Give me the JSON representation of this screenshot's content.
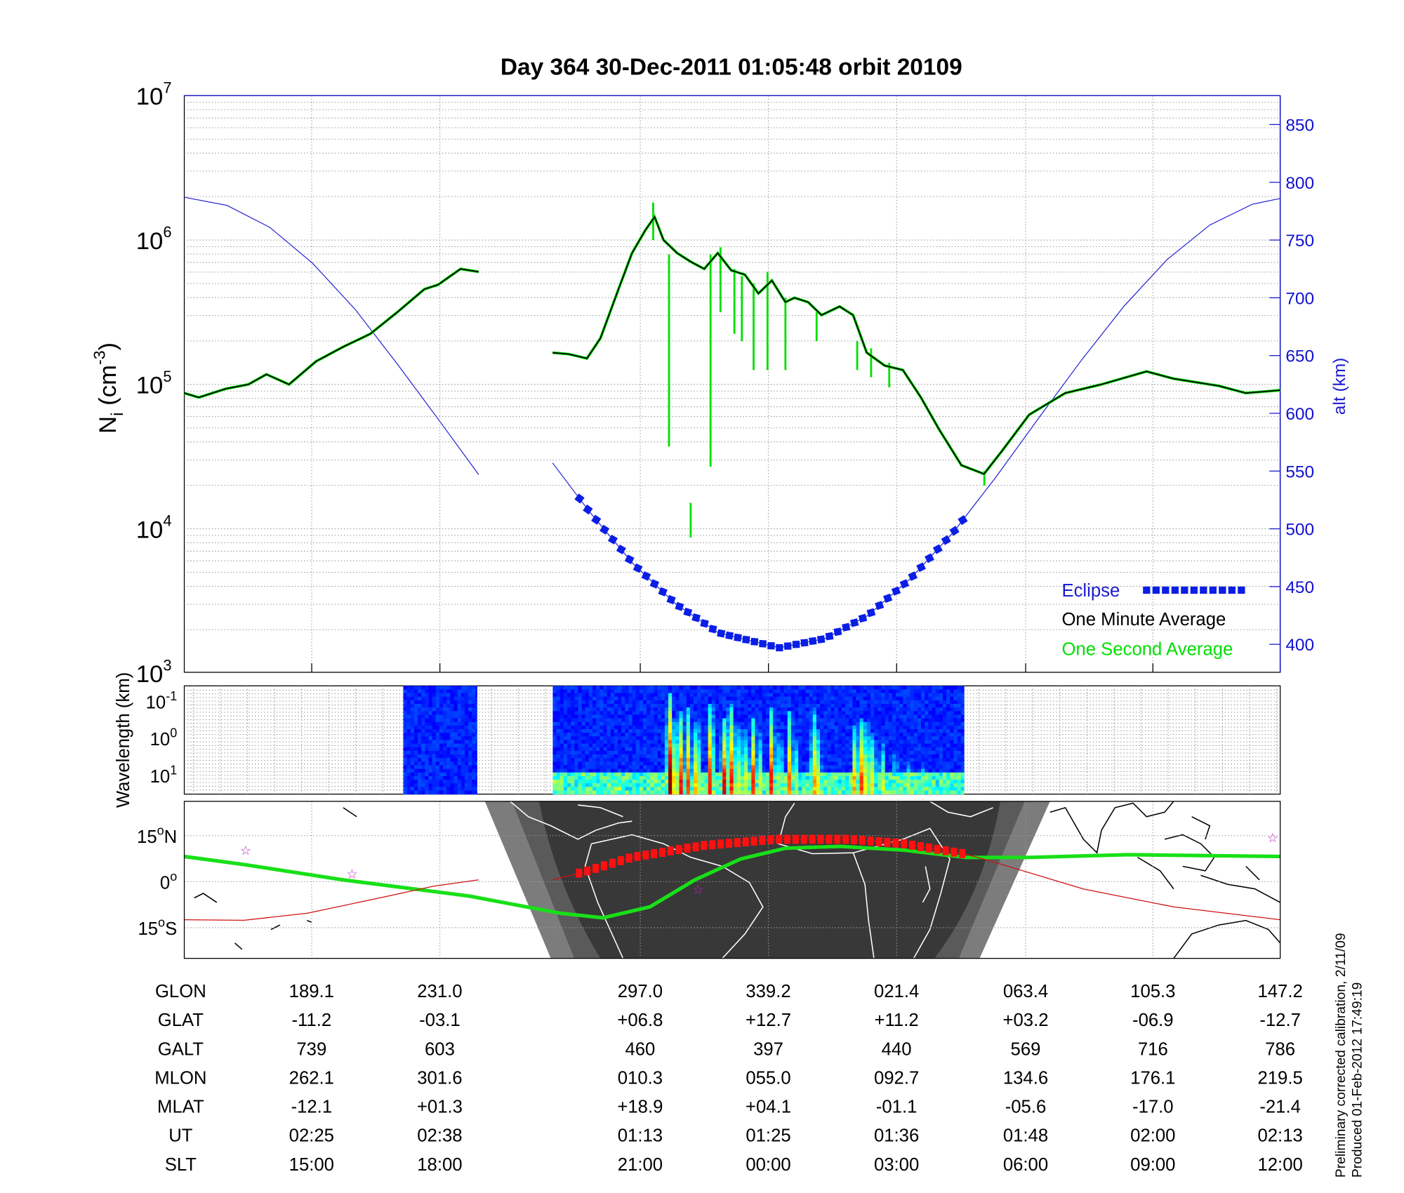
{
  "title": "Day 364  30-Dec-2011 01:05:48   orbit 20109",
  "main_panel": {
    "ylabel_main": "N",
    "ylabel_sub": "i",
    "ylabel_unit": " (cm",
    "ylabel_exp": "-3",
    "ylabel_close": ")",
    "y_ticks": [
      {
        "base": "10",
        "exp": "7",
        "log": 7
      },
      {
        "base": "10",
        "exp": "6",
        "log": 6
      },
      {
        "base": "10",
        "exp": "5",
        "log": 5
      },
      {
        "base": "10",
        "exp": "4",
        "log": 4
      },
      {
        "base": "10",
        "exp": "3",
        "log": 3
      }
    ],
    "right_label": "alt (km)",
    "right_ticks": [
      "850",
      "800",
      "750",
      "700",
      "650",
      "600",
      "550",
      "500",
      "450",
      "400"
    ],
    "legend": {
      "eclipse": "Eclipse",
      "minute": "One Minute Average",
      "second": "One Second Average"
    }
  },
  "spectrogram": {
    "ylabel": "Wavelength (km)",
    "y_ticks": [
      {
        "base": "10",
        "exp": "-1",
        "log": -1
      },
      {
        "base": "10",
        "exp": "0",
        "log": 0
      },
      {
        "base": "10",
        "exp": "1",
        "log": 1
      }
    ],
    "blocks_min": [
      [
        20.5,
        27.4
      ],
      [
        34.5,
        73.0
      ]
    ],
    "streaks": [
      {
        "t": 45.3,
        "power": 0.95,
        "top_log": -1.3
      },
      {
        "t": 45.8,
        "power": 0.8,
        "top_log": -0.6
      },
      {
        "t": 46.3,
        "power": 0.85,
        "top_log": -0.8
      },
      {
        "t": 47.0,
        "power": 0.75,
        "top_log": -0.9
      },
      {
        "t": 47.8,
        "power": 0.8,
        "top_log": -0.5
      },
      {
        "t": 49.1,
        "power": 0.9,
        "top_log": -1.0
      },
      {
        "t": 50.4,
        "power": 0.85,
        "top_log": -0.6
      },
      {
        "t": 51.0,
        "power": 0.9,
        "top_log": -1.0
      },
      {
        "t": 51.6,
        "power": 0.75,
        "top_log": -0.4
      },
      {
        "t": 52.3,
        "power": 0.7,
        "top_log": -0.3
      },
      {
        "t": 53.1,
        "power": 0.8,
        "top_log": -0.6
      },
      {
        "t": 53.7,
        "power": 0.6,
        "top_log": -0.2
      },
      {
        "t": 54.8,
        "power": 0.8,
        "top_log": -0.9
      },
      {
        "t": 55.6,
        "power": 0.6,
        "top_log": -0.2
      },
      {
        "t": 56.5,
        "power": 0.75,
        "top_log": -0.8
      },
      {
        "t": 57.1,
        "power": 0.55,
        "top_log": 0.0
      },
      {
        "t": 58.8,
        "power": 0.7,
        "top_log": -0.9
      },
      {
        "t": 59.2,
        "power": 0.6,
        "top_log": -0.3
      },
      {
        "t": 62.6,
        "power": 0.7,
        "top_log": -0.4
      },
      {
        "t": 63.2,
        "power": 0.8,
        "top_log": -0.6
      },
      {
        "t": 63.7,
        "power": 0.75,
        "top_log": -0.5
      },
      {
        "t": 64.3,
        "power": 0.65,
        "top_log": -0.2
      },
      {
        "t": 65.2,
        "power": 0.6,
        "top_log": 0.1
      },
      {
        "t": 66.4,
        "power": 0.5,
        "top_log": 0.3
      },
      {
        "t": 67.7,
        "power": 0.45,
        "top_log": 0.5
      },
      {
        "t": 69.0,
        "power": 0.4,
        "top_log": 0.6
      }
    ]
  },
  "map_panel": {
    "lat_labels": [
      {
        "text": "15",
        "deg": "o",
        "hemi": "N",
        "lat": 15
      },
      {
        "text": "0",
        "deg": "o",
        "hemi": "",
        "lat": 0
      },
      {
        "text": "15",
        "deg": "o",
        "hemi": "S",
        "lat": -15
      }
    ]
  },
  "table": {
    "rows": [
      {
        "label": "GLON",
        "values": [
          "189.1",
          "231.0",
          "297.0",
          "339.2",
          "021.4",
          "063.4",
          "105.3",
          "147.2"
        ]
      },
      {
        "label": "GLAT",
        "values": [
          "-11.2",
          "-03.1",
          "+06.8",
          "+12.7",
          "+11.2",
          "+03.2",
          "-06.9",
          "-12.7"
        ]
      },
      {
        "label": "GALT",
        "values": [
          "739",
          "603",
          "460",
          "397",
          "440",
          "569",
          "716",
          "786"
        ]
      },
      {
        "label": "MLON",
        "values": [
          "262.1",
          "301.6",
          "010.3",
          "055.0",
          "092.7",
          "134.6",
          "176.1",
          "219.5"
        ]
      },
      {
        "label": "MLAT",
        "values": [
          "-12.1",
          "+01.3",
          "+18.9",
          "+04.1",
          "-01.1",
          "-05.6",
          "-17.0",
          "-21.4"
        ]
      },
      {
        "label": "UT",
        "values": [
          "02:25",
          "02:38",
          "01:13",
          "01:25",
          "01:36",
          "01:48",
          "02:00",
          "02:13"
        ]
      },
      {
        "label": "SLT",
        "values": [
          "15:00",
          "18:00",
          "21:00",
          "00:00",
          "03:00",
          "06:00",
          "09:00",
          "12:00"
        ]
      }
    ]
  },
  "footer": {
    "line1": "Preliminary corrected calibration, 2/11/09",
    "line2": "Produced 01-Feb-2012 17:49:19"
  },
  "colors": {
    "minute": "#000000",
    "second": "#00e000",
    "altitude": "#1a1ad0",
    "eclipse": "#0a1ee6",
    "track": "#d01010",
    "eclipse_track": "#ff1010",
    "dip_equator": "#18e018",
    "star": "#c020c0"
  },
  "chart_data": {
    "type": "line",
    "title": "Day 364  30-Dec-2011 01:05:48   orbit 20109",
    "xlim": [
      0,
      102.6
    ],
    "x_ticks": [
      11.93,
      23.93,
      42.69,
      54.69,
      66.69,
      78.77,
      90.68,
      102.6
    ],
    "ylim_log10": [
      3,
      7
    ],
    "alt_lim": [
      375,
      875
    ],
    "density_minute_log10": [
      [
        [
          0,
          4.94
        ],
        [
          1.35,
          4.91
        ],
        [
          3.89,
          4.97
        ],
        [
          6.0,
          5.0
        ],
        [
          7.69,
          5.07
        ],
        [
          9.8,
          5.0
        ],
        [
          12.34,
          5.16
        ],
        [
          14.87,
          5.26
        ],
        [
          17.41,
          5.35
        ],
        [
          19.94,
          5.5
        ],
        [
          22.48,
          5.66
        ],
        [
          23.75,
          5.69
        ],
        [
          25.86,
          5.8
        ],
        [
          27.55,
          5.78
        ]
      ],
      [
        [
          34.48,
          5.22
        ],
        [
          36.0,
          5.21
        ],
        [
          37.69,
          5.18
        ],
        [
          38.96,
          5.32
        ],
        [
          40.65,
          5.66
        ],
        [
          41.92,
          5.91
        ],
        [
          43.18,
          6.07
        ],
        [
          44.03,
          6.16
        ],
        [
          44.87,
          6.0
        ],
        [
          46.14,
          5.91
        ],
        [
          47.41,
          5.85
        ],
        [
          48.68,
          5.8
        ],
        [
          49.94,
          5.91
        ],
        [
          51.21,
          5.79
        ],
        [
          52.48,
          5.76
        ],
        [
          53.75,
          5.63
        ],
        [
          55.01,
          5.72
        ],
        [
          56.28,
          5.57
        ],
        [
          57.13,
          5.6
        ],
        [
          58.4,
          5.57
        ],
        [
          59.66,
          5.48
        ],
        [
          61.35,
          5.54
        ],
        [
          62.62,
          5.48
        ],
        [
          63.89,
          5.22
        ],
        [
          65.58,
          5.13
        ],
        [
          67.27,
          5.1
        ],
        [
          68.96,
          4.91
        ],
        [
          70.65,
          4.69
        ],
        [
          72.76,
          4.44
        ],
        [
          74.87,
          4.38
        ],
        [
          76.56,
          4.54
        ],
        [
          79.1,
          4.79
        ],
        [
          82.48,
          4.94
        ],
        [
          85.86,
          5.0
        ],
        [
          90.08,
          5.09
        ],
        [
          92.62,
          5.04
        ],
        [
          96.85,
          4.99
        ],
        [
          99.38,
          4.94
        ],
        [
          102.6,
          4.96
        ]
      ]
    ],
    "density_second_spikes_log10": [
      {
        "x": 43.9,
        "from": 6.0,
        "to": 6.26
      },
      {
        "x": 45.38,
        "from": 4.57,
        "to": 5.9
      },
      {
        "x": 47.41,
        "from": 3.94,
        "to": 4.18
      },
      {
        "x": 49.27,
        "from": 4.43,
        "to": 5.9
      },
      {
        "x": 50.2,
        "from": 5.5,
        "to": 5.95
      },
      {
        "x": 51.5,
        "from": 5.35,
        "to": 5.8
      },
      {
        "x": 52.2,
        "from": 5.3,
        "to": 5.75
      },
      {
        "x": 53.3,
        "from": 5.1,
        "to": 5.7
      },
      {
        "x": 54.6,
        "from": 5.1,
        "to": 5.78
      },
      {
        "x": 56.28,
        "from": 5.1,
        "to": 5.6
      },
      {
        "x": 59.2,
        "from": 5.3,
        "to": 5.5
      },
      {
        "x": 63.0,
        "from": 5.1,
        "to": 5.3
      },
      {
        "x": 64.3,
        "from": 5.05,
        "to": 5.25
      },
      {
        "x": 66.0,
        "from": 4.98,
        "to": 5.15
      },
      {
        "x": 74.9,
        "from": 4.3,
        "to": 4.4
      }
    ],
    "altitude_km": [
      [
        [
          0,
          787
        ],
        [
          4,
          780
        ],
        [
          8,
          761
        ],
        [
          12,
          730
        ],
        [
          16,
          690
        ],
        [
          20,
          642
        ],
        [
          24,
          592
        ],
        [
          27.55,
          547
        ]
      ],
      [
        [
          34.48,
          557
        ],
        [
          38,
          514
        ],
        [
          42,
          470
        ],
        [
          46,
          435
        ],
        [
          50,
          410
        ],
        [
          55.7,
          397
        ],
        [
          60,
          405
        ],
        [
          64,
          425
        ],
        [
          68,
          457
        ],
        [
          72,
          497
        ],
        [
          76,
          545
        ],
        [
          80,
          596
        ],
        [
          84,
          646
        ],
        [
          88,
          693
        ],
        [
          92,
          733
        ],
        [
          96,
          763
        ],
        [
          100,
          781
        ],
        [
          102.6,
          786
        ]
      ]
    ],
    "eclipse_interval": [
      37.0,
      73.0
    ],
    "map_lat_lim": [
      -25,
      26
    ],
    "dip_equator_lat": [
      [
        0,
        8.2
      ],
      [
        5.58,
        5.6
      ],
      [
        14.87,
        0.6
      ],
      [
        26.7,
        -4.7
      ],
      [
        35.2,
        -10.3
      ],
      [
        39.2,
        -11.8
      ],
      [
        43.6,
        -8.2
      ],
      [
        47.8,
        0.6
      ],
      [
        52.1,
        7.4
      ],
      [
        56.3,
        10.9
      ],
      [
        61.4,
        11.5
      ],
      [
        67.3,
        10.3
      ],
      [
        73.2,
        7.9
      ],
      [
        79.1,
        7.9
      ],
      [
        88.4,
        8.8
      ],
      [
        102.6,
        8.2
      ]
    ],
    "track_lat": [
      [
        [
          0,
          -12.4
        ],
        [
          5.58,
          -12.6
        ],
        [
          11.5,
          -10.3
        ],
        [
          18.3,
          -5.3
        ],
        [
          23.3,
          -1.5
        ],
        [
          27.55,
          0.6
        ]
      ],
      [
        [
          34.48,
          0.6
        ],
        [
          37.5,
          3.2
        ],
        [
          41.9,
          7.9
        ],
        [
          48.7,
          11.8
        ],
        [
          55.4,
          13.8
        ],
        [
          62.2,
          13.8
        ],
        [
          67.3,
          12.4
        ],
        [
          73.0,
          9.1
        ],
        [
          75.7,
          6.5
        ],
        [
          84.2,
          -2.4
        ],
        [
          92.6,
          -8.2
        ],
        [
          102.6,
          -12.4
        ]
      ]
    ],
    "stars": [
      [
        5.75,
        10.3
      ],
      [
        15.7,
        2.6
      ],
      [
        48.1,
        -2.4
      ],
      [
        101.9,
        14.4
      ]
    ]
  }
}
